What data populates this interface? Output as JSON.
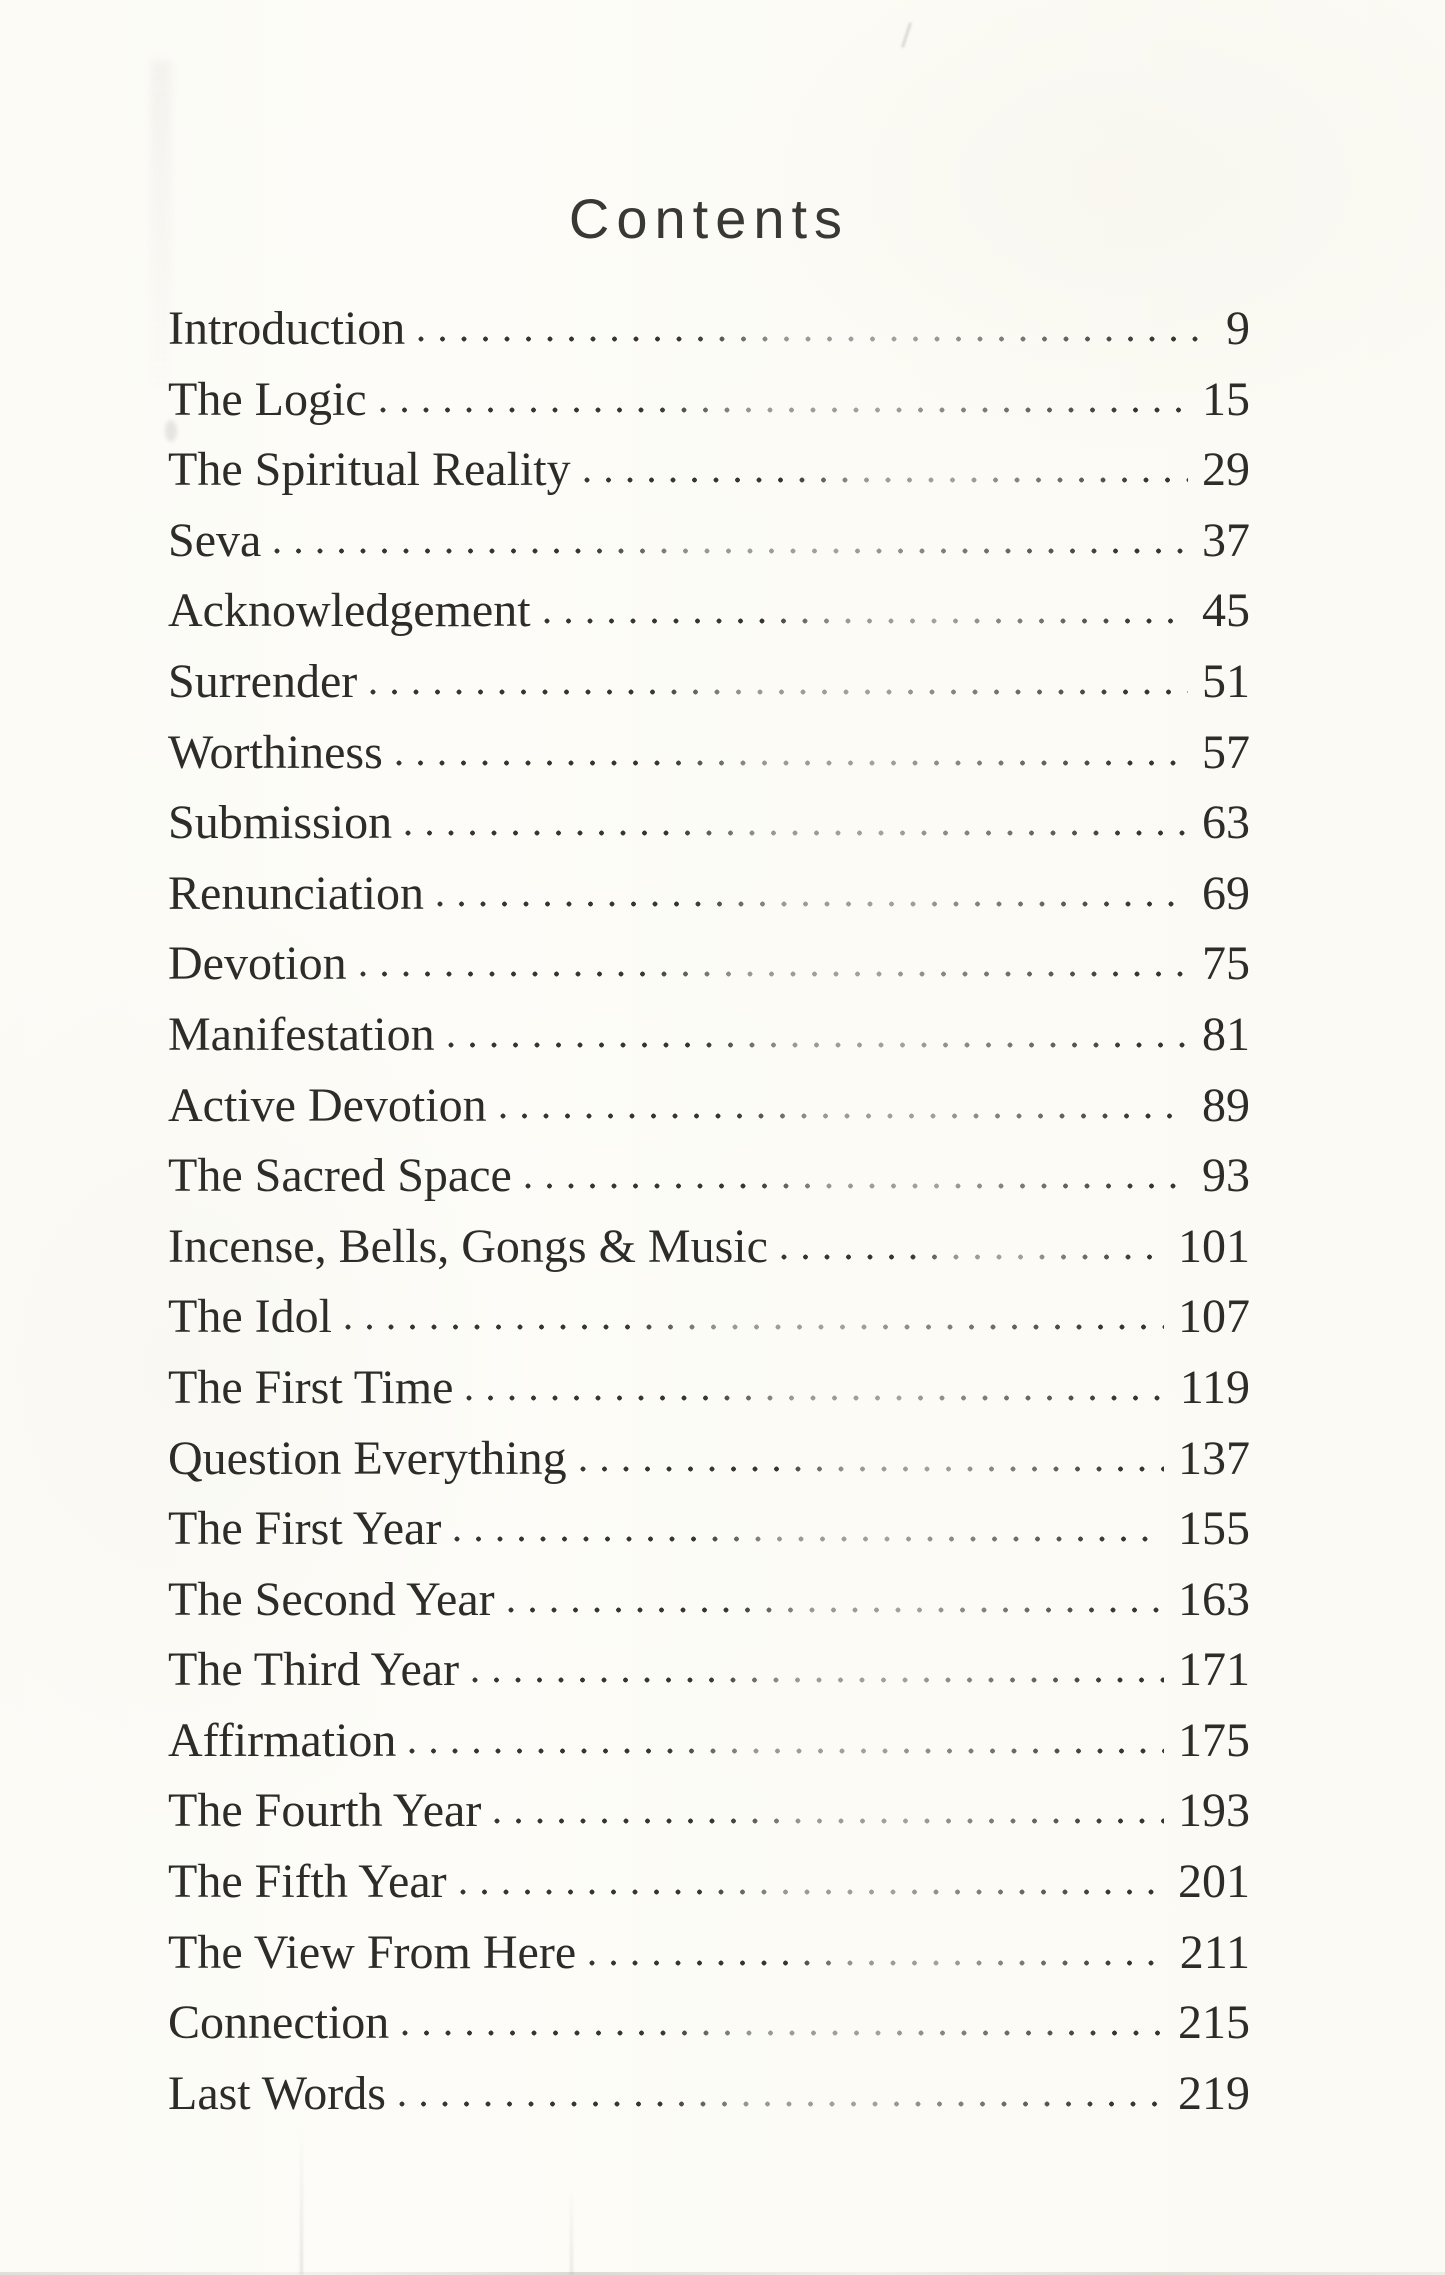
{
  "page": {
    "title": "Contents"
  },
  "colors": {
    "paper": "#fcfbf6",
    "ink": "#2e2c28"
  },
  "toc": {
    "entries": [
      {
        "label": "Introduction",
        "page": "9"
      },
      {
        "label": "The Logic",
        "page": "15"
      },
      {
        "label": "The Spiritual Reality",
        "page": "29"
      },
      {
        "label": "Seva",
        "page": "37"
      },
      {
        "label": "Acknowledgement",
        "page": "45"
      },
      {
        "label": "Surrender",
        "page": "51"
      },
      {
        "label": "Worthiness",
        "page": "57"
      },
      {
        "label": "Submission",
        "page": "63"
      },
      {
        "label": "Renunciation",
        "page": "69"
      },
      {
        "label": "Devotion",
        "page": "75"
      },
      {
        "label": "Manifestation",
        "page": "81"
      },
      {
        "label": "Active Devotion",
        "page": "89"
      },
      {
        "label": "The Sacred Space",
        "page": "93"
      },
      {
        "label": "Incense, Bells, Gongs & Music",
        "page": "101"
      },
      {
        "label": "The Idol",
        "page": "107"
      },
      {
        "label": "The First Time",
        "page": "119"
      },
      {
        "label": "Question Everything",
        "page": "137"
      },
      {
        "label": "The First Year",
        "page": "155"
      },
      {
        "label": "The Second Year",
        "page": "163"
      },
      {
        "label": "The Third Year",
        "page": "171"
      },
      {
        "label": "Affirmation",
        "page": "175"
      },
      {
        "label": "The Fourth Year",
        "page": "193"
      },
      {
        "label": "The Fifth Year",
        "page": "201"
      },
      {
        "label": "The View From Here",
        "page": "211"
      },
      {
        "label": "Connection",
        "page": "215"
      },
      {
        "label": "Last Words",
        "page": "219"
      }
    ]
  }
}
